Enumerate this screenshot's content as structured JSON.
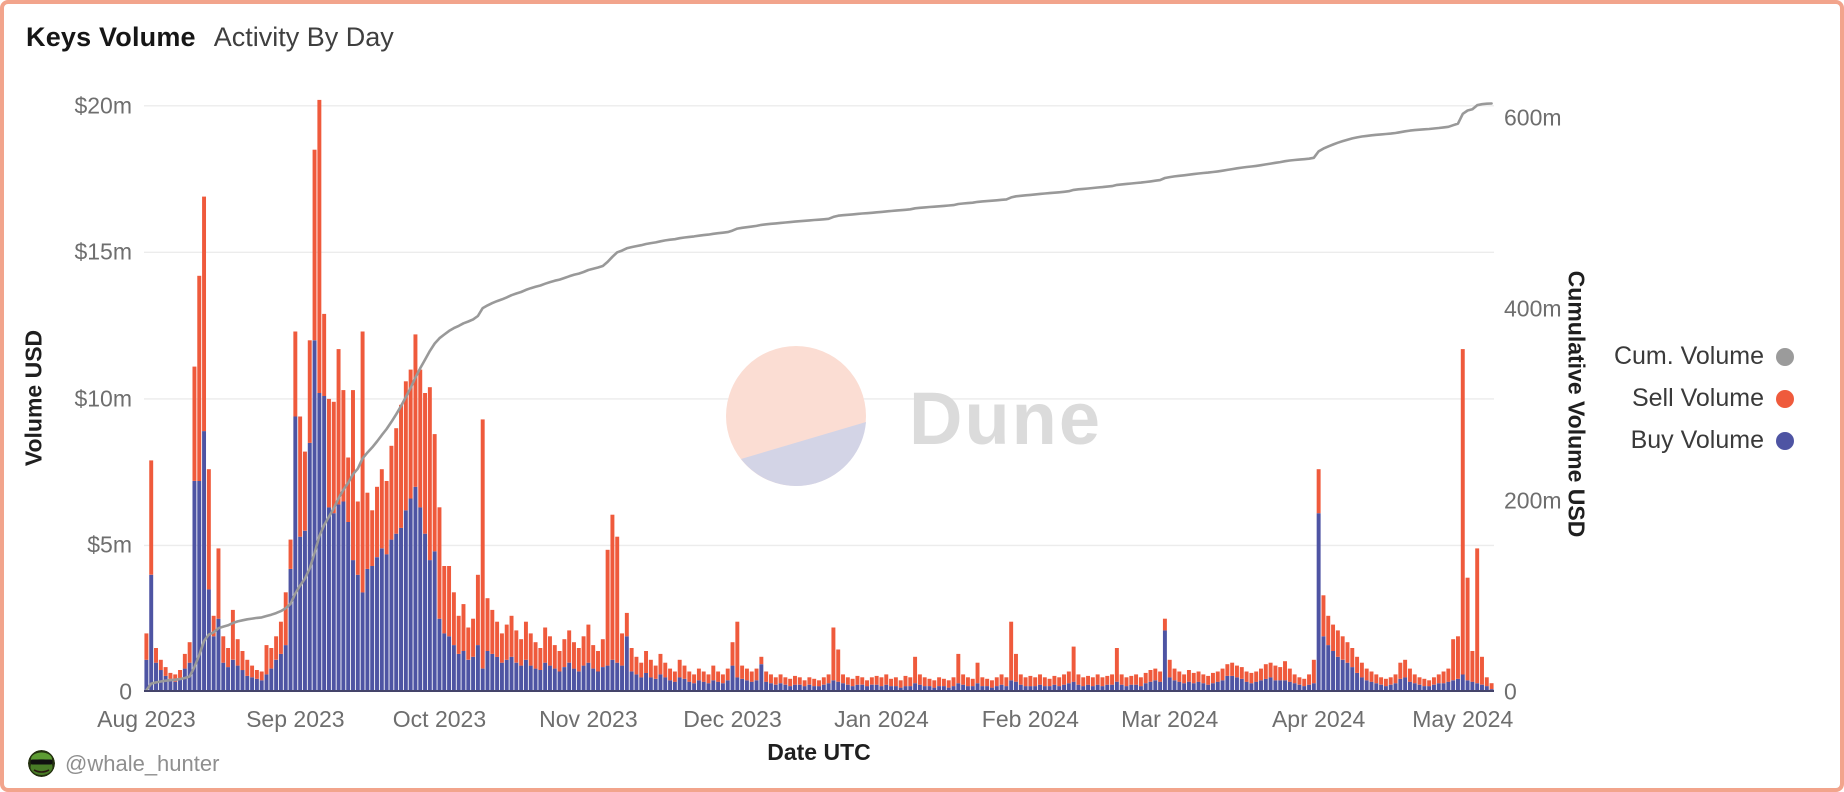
{
  "header": {
    "title": "Keys Volume",
    "subtitle": "Activity By Day"
  },
  "watermark": {
    "brand": "Dune"
  },
  "footer": {
    "author_handle": "@whale_hunter",
    "avatar_icon": "frog-avatar"
  },
  "colors": {
    "buy": "#4e54a3",
    "sell": "#ef5a3c",
    "cumulative_line": "#999999",
    "grid": "#ececec",
    "axis_line": "#44446a",
    "card_border": "#f2a48c",
    "watermark_peach": "#fbddd3",
    "watermark_lavender": "#d3d4e6",
    "watermark_text": "#dbdbdb"
  },
  "legend": {
    "items": [
      {
        "label": "Cum. Volume",
        "color": "#9b9b9b"
      },
      {
        "label": "Sell Volume",
        "color": "#ef5a3c"
      },
      {
        "label": "Buy Volume",
        "color": "#4e54a3"
      }
    ]
  },
  "chart_data": {
    "type": "bar",
    "subtype": "stacked-daily-bars-with-cumulative-line",
    "title": "Keys Volume — Activity By Day",
    "xlabel": "Date UTC",
    "ylabel_left": "Volume USD",
    "ylabel_right": "Cumulative Volume USD",
    "x_start_date": "2023-08-01",
    "x_frequency": "daily",
    "n_days": 281,
    "ylim_left_musd": [
      0,
      20.47
    ],
    "ylim_right_musd": [
      0,
      627
    ],
    "grid": "horizontal-only",
    "legend_position": "right",
    "x_ticks": [
      {
        "label": "Aug 2023",
        "day": 0
      },
      {
        "label": "Sep 2023",
        "day": 31
      },
      {
        "label": "Oct 2023",
        "day": 61
      },
      {
        "label": "Nov 2023",
        "day": 92
      },
      {
        "label": "Dec 2023",
        "day": 122
      },
      {
        "label": "Jan 2024",
        "day": 153
      },
      {
        "label": "Feb 2024",
        "day": 184
      },
      {
        "label": "Mar 2024",
        "day": 213
      },
      {
        "label": "Apr 2024",
        "day": 244
      },
      {
        "label": "May 2024",
        "day": 274
      }
    ],
    "y_ticks_left": [
      {
        "value": 20,
        "label": "$20m"
      },
      {
        "value": 15,
        "label": "$15m"
      },
      {
        "value": 10,
        "label": "$10m"
      },
      {
        "value": 5,
        "label": "$5m"
      },
      {
        "value": 0,
        "label": "0"
      }
    ],
    "y_ticks_right": [
      {
        "value": 600,
        "label": "600m"
      },
      {
        "value": 400,
        "label": "400m"
      },
      {
        "value": 200,
        "label": "200m"
      },
      {
        "value": 0,
        "label": "0"
      }
    ],
    "cumulative_final_musd": 615,
    "series": [
      {
        "name": "Buy Volume",
        "type": "bar",
        "stack": "total",
        "unit": "million USD/day",
        "values": [
          1.1,
          4.0,
          1.0,
          0.75,
          0.55,
          0.45,
          0.35,
          0.45,
          0.8,
          1.0,
          7.2,
          7.2,
          8.9,
          3.5,
          1.9,
          2.5,
          1.0,
          0.85,
          1.1,
          0.9,
          0.75,
          0.55,
          0.5,
          0.45,
          0.4,
          0.6,
          0.8,
          1.1,
          1.3,
          1.6,
          4.2,
          9.4,
          5.3,
          5.5,
          8.5,
          12.0,
          10.2,
          10.1,
          6.3,
          6.1,
          6.4,
          6.5,
          5.8,
          4.5,
          4.0,
          3.4,
          4.2,
          4.3,
          4.6,
          4.9,
          4.7,
          5.2,
          5.4,
          5.6,
          6.2,
          6.6,
          7.0,
          6.3,
          5.4,
          4.5,
          4.8,
          2.5,
          2.0,
          1.9,
          1.6,
          1.3,
          1.4,
          1.1,
          1.2,
          1.6,
          0.8,
          1.4,
          1.3,
          1.2,
          1.0,
          1.1,
          1.2,
          1.0,
          0.9,
          1.1,
          0.9,
          0.8,
          0.75,
          1.0,
          0.9,
          0.8,
          0.7,
          0.85,
          1.0,
          0.8,
          0.7,
          0.9,
          1.0,
          0.8,
          0.7,
          0.85,
          0.9,
          1.1,
          1.0,
          0.9,
          1.9,
          0.7,
          0.6,
          0.5,
          0.65,
          0.5,
          0.45,
          0.6,
          0.5,
          0.4,
          0.35,
          0.5,
          0.45,
          0.35,
          0.3,
          0.4,
          0.35,
          0.3,
          0.4,
          0.35,
          0.3,
          0.4,
          0.9,
          0.5,
          0.45,
          0.4,
          0.35,
          0.4,
          0.95,
          0.35,
          0.3,
          0.25,
          0.3,
          0.25,
          0.2,
          0.25,
          0.25,
          0.2,
          0.25,
          0.2,
          0.2,
          0.25,
          0.3,
          0.4,
          0.35,
          0.3,
          0.25,
          0.2,
          0.25,
          0.25,
          0.2,
          0.25,
          0.25,
          0.2,
          0.25,
          0.2,
          0.2,
          0.15,
          0.2,
          0.2,
          0.3,
          0.25,
          0.2,
          0.2,
          0.15,
          0.2,
          0.2,
          0.15,
          0.2,
          0.3,
          0.25,
          0.2,
          0.2,
          0.3,
          0.2,
          0.2,
          0.15,
          0.2,
          0.25,
          0.2,
          0.4,
          0.35,
          0.25,
          0.2,
          0.2,
          0.2,
          0.25,
          0.2,
          0.2,
          0.25,
          0.2,
          0.25,
          0.3,
          0.35,
          0.25,
          0.2,
          0.25,
          0.2,
          0.25,
          0.2,
          0.25,
          0.25,
          0.35,
          0.25,
          0.2,
          0.25,
          0.25,
          0.2,
          0.3,
          0.35,
          0.4,
          0.35,
          2.1,
          0.5,
          0.4,
          0.35,
          0.3,
          0.35,
          0.3,
          0.35,
          0.3,
          0.25,
          0.3,
          0.35,
          0.4,
          0.55,
          0.55,
          0.5,
          0.45,
          0.35,
          0.3,
          0.35,
          0.4,
          0.45,
          0.5,
          0.4,
          0.4,
          0.4,
          0.35,
          0.3,
          0.25,
          0.2,
          0.25,
          0.3,
          6.1,
          1.9,
          1.6,
          1.4,
          1.2,
          1.1,
          1.0,
          0.85,
          0.65,
          0.5,
          0.4,
          0.35,
          0.3,
          0.25,
          0.2,
          0.25,
          0.3,
          0.45,
          0.5,
          0.35,
          0.3,
          0.25,
          0.2,
          0.2,
          0.25,
          0.3,
          0.3,
          0.35,
          0.4,
          0.45,
          0.6,
          0.4,
          0.35,
          0.3,
          0.25,
          0.2,
          0.1
        ]
      },
      {
        "name": "Sell Volume",
        "type": "bar",
        "stack": "total",
        "unit": "million USD/day",
        "values": [
          0.9,
          3.9,
          0.5,
          0.35,
          0.3,
          0.2,
          0.25,
          0.3,
          0.5,
          0.7,
          3.9,
          7.0,
          8.0,
          4.1,
          0.7,
          2.4,
          0.9,
          0.65,
          1.7,
          0.9,
          0.65,
          0.55,
          0.4,
          0.3,
          0.3,
          1.0,
          0.7,
          0.8,
          1.1,
          1.8,
          1.0,
          2.9,
          4.1,
          2.7,
          3.5,
          6.5,
          10.0,
          2.8,
          3.7,
          3.8,
          5.3,
          3.8,
          2.2,
          5.8,
          2.5,
          8.9,
          2.6,
          1.9,
          2.4,
          2.7,
          2.5,
          3.2,
          3.6,
          4.2,
          4.4,
          4.4,
          5.2,
          4.7,
          4.8,
          5.9,
          4.0,
          3.8,
          2.3,
          2.4,
          1.8,
          1.3,
          1.6,
          1.1,
          1.3,
          2.4,
          8.5,
          1.8,
          1.5,
          1.2,
          1.0,
          1.2,
          1.4,
          1.1,
          0.9,
          1.3,
          1.1,
          0.9,
          0.75,
          1.2,
          1.0,
          0.8,
          0.7,
          0.95,
          1.1,
          0.9,
          0.8,
          1.0,
          1.3,
          0.8,
          0.7,
          0.95,
          3.95,
          4.95,
          4.3,
          1.1,
          0.8,
          0.8,
          0.6,
          0.5,
          0.75,
          0.6,
          0.45,
          0.7,
          0.5,
          0.4,
          0.35,
          0.6,
          0.45,
          0.35,
          0.3,
          0.4,
          0.35,
          0.3,
          0.5,
          0.35,
          0.3,
          0.4,
          0.8,
          1.9,
          0.45,
          0.4,
          0.35,
          0.4,
          0.25,
          0.35,
          0.3,
          0.25,
          0.3,
          0.25,
          0.25,
          0.3,
          0.25,
          0.2,
          0.25,
          0.25,
          0.2,
          0.25,
          0.3,
          1.8,
          1.1,
          0.3,
          0.25,
          0.25,
          0.3,
          0.25,
          0.2,
          0.25,
          0.3,
          0.3,
          0.35,
          0.25,
          0.3,
          0.25,
          0.35,
          0.3,
          0.9,
          0.35,
          0.3,
          0.25,
          0.25,
          0.3,
          0.25,
          0.25,
          0.3,
          1.0,
          0.35,
          0.3,
          0.25,
          0.7,
          0.3,
          0.25,
          0.25,
          0.3,
          0.35,
          0.3,
          2.0,
          0.95,
          0.35,
          0.3,
          0.35,
          0.3,
          0.35,
          0.3,
          0.25,
          0.3,
          0.3,
          0.35,
          0.4,
          1.2,
          0.35,
          0.3,
          0.3,
          0.3,
          0.35,
          0.3,
          0.3,
          0.35,
          1.15,
          0.35,
          0.3,
          0.3,
          0.35,
          0.3,
          0.35,
          0.4,
          0.4,
          0.35,
          0.4,
          0.6,
          0.4,
          0.35,
          0.3,
          0.4,
          0.35,
          0.35,
          0.3,
          0.3,
          0.35,
          0.35,
          0.4,
          0.4,
          0.45,
          0.4,
          0.4,
          0.35,
          0.35,
          0.35,
          0.4,
          0.5,
          0.5,
          0.5,
          0.45,
          0.65,
          0.45,
          0.3,
          0.25,
          0.25,
          0.35,
          0.8,
          1.5,
          1.4,
          1.0,
          0.9,
          0.9,
          0.8,
          0.7,
          0.65,
          0.55,
          0.5,
          0.4,
          0.35,
          0.3,
          0.25,
          0.25,
          0.25,
          0.3,
          0.55,
          0.6,
          0.45,
          0.3,
          0.25,
          0.25,
          0.2,
          0.25,
          0.3,
          0.4,
          0.45,
          1.4,
          1.45,
          11.1,
          3.5,
          1.05,
          4.6,
          0.95,
          0.3,
          0.2
        ]
      },
      {
        "name": "Cum. Volume",
        "type": "line",
        "axis": "right",
        "unit": "million USD",
        "derivation": "running sum of daily Buy+Sell, normalized to cumulative_final_musd"
      }
    ]
  }
}
